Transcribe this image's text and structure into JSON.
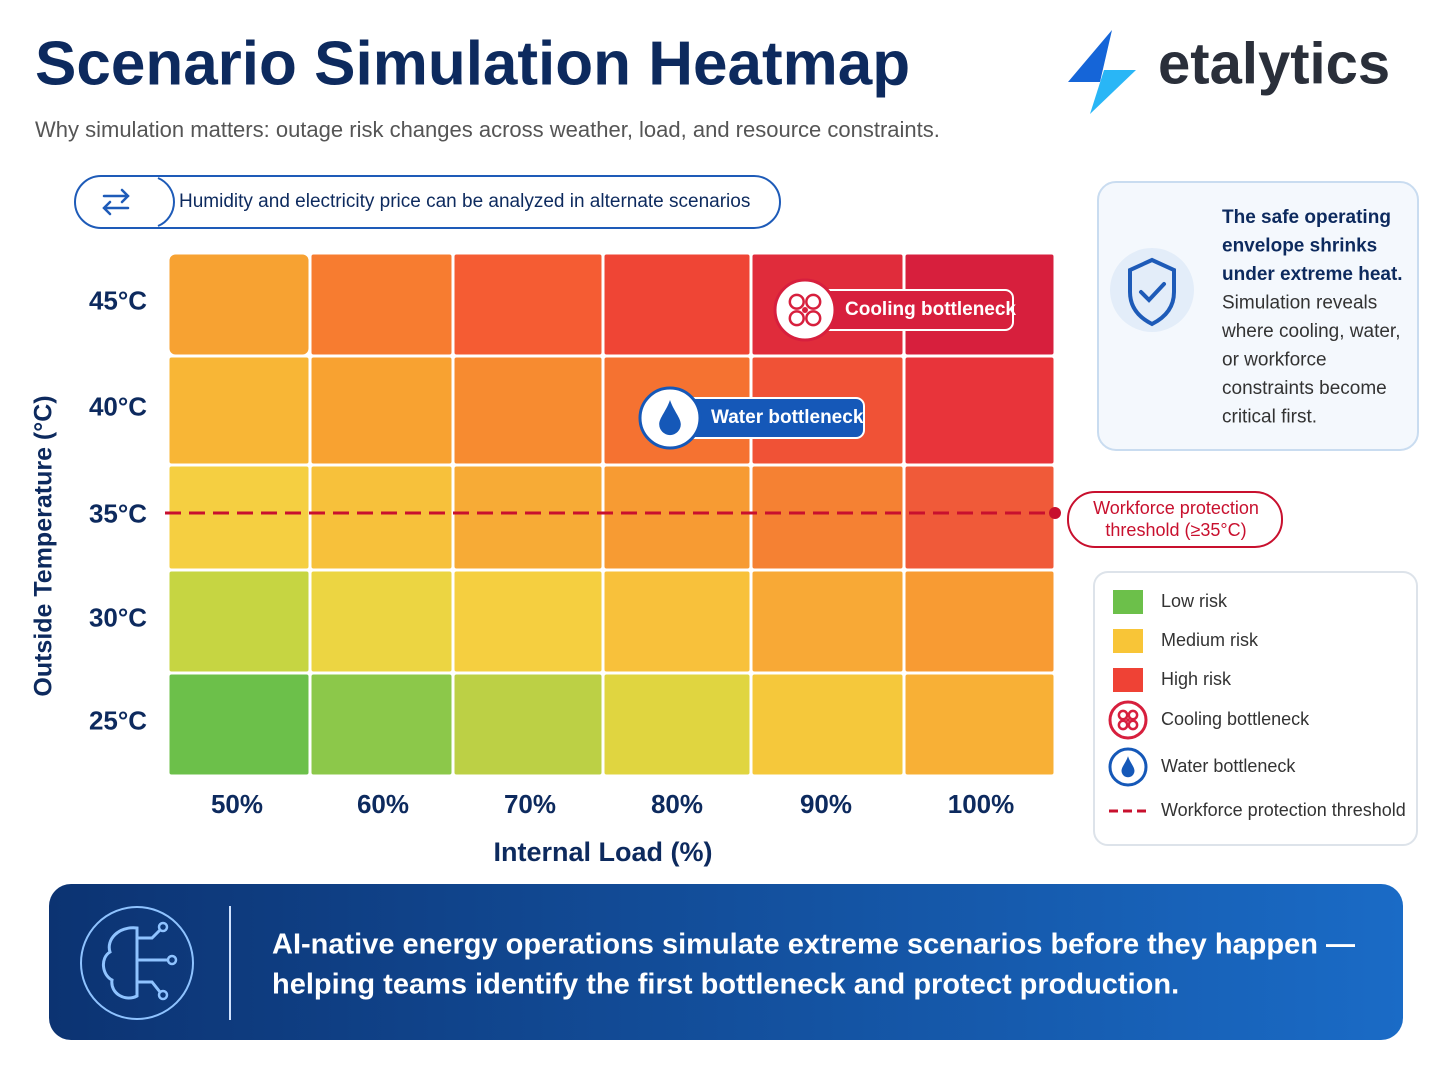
{
  "header": {
    "title": "Scenario Simulation Heatmap",
    "subtitle": "Why simulation matters: outage risk changes across weather, load, and resource constraints.",
    "brand": "etalytics"
  },
  "note": "Humidity and electricity price can be analyzed in alternate scenarios",
  "chart_data": {
    "type": "heatmap",
    "x_label": "Internal Load (%)",
    "y_label": "Outside Temperature (°C)",
    "x_categories": [
      "50%",
      "60%",
      "70%",
      "80%",
      "90%",
      "100%"
    ],
    "y_categories": [
      "45°C",
      "40°C",
      "35°C",
      "30°C",
      "25°C"
    ],
    "colors": [
      [
        "#f7a232",
        "#f77c30",
        "#f55c33",
        "#ef4535",
        "#e02c3b",
        "#d71f3d"
      ],
      [
        "#f8b636",
        "#f8a231",
        "#f78b30",
        "#f57231",
        "#f05236",
        "#e8343a"
      ],
      [
        "#f5cf41",
        "#f7c13b",
        "#f7ab36",
        "#f79b33",
        "#f58133",
        "#f05a39"
      ],
      [
        "#c6d542",
        "#ecd542",
        "#f5cf40",
        "#f8c13b",
        "#f8a936",
        "#f89b33"
      ],
      [
        "#6cc04a",
        "#8cc84a",
        "#bcd045",
        "#e0d540",
        "#f5c83b",
        "#f8b036"
      ]
    ],
    "annotations": [
      "Cooling bottleneck",
      "Water bottleneck"
    ],
    "threshold": {
      "lines": [
        "Workforce protection",
        "threshold (≥35°C)"
      ],
      "color": "#c8102e"
    },
    "legend": [
      {
        "label": "Low risk",
        "color": "#6cc04a"
      },
      {
        "label": "Medium risk",
        "color": "#f8c537"
      },
      {
        "label": "High risk",
        "color": "#ef4235"
      },
      {
        "label": "Cooling bottleneck"
      },
      {
        "label": "Water bottleneck"
      },
      {
        "label": "Workforce protection threshold"
      }
    ]
  },
  "side_note": {
    "bold_lines": [
      "The safe operating",
      "envelope shrinks",
      "under extreme heat."
    ],
    "lines": [
      "Simulation reveals",
      "where cooling, water,",
      "or workforce",
      "constraints become",
      "critical first."
    ]
  },
  "footer": {
    "lines": [
      "AI-native energy operations simulate extreme scenarios before they happen —",
      "helping teams identify the first bottleneck and protect production."
    ]
  }
}
